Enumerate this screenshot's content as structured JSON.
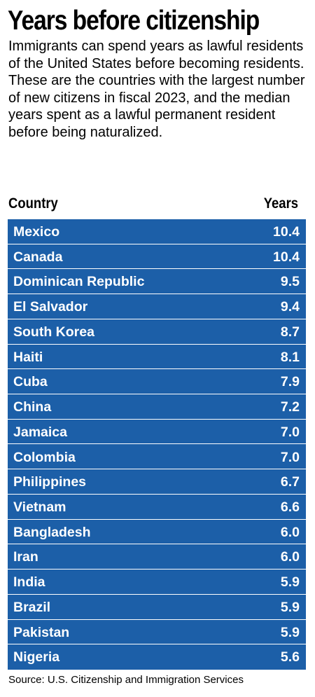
{
  "title": "Years before citizenship",
  "description": "Immigrants can spend years as lawful residents of the United States before be­coming residents. These are the countries with the largest number of new citizens in fiscal 2023, and the median years spent as a lawful permanent resident before being naturalized.",
  "source": "Source: U.S. Citizenship and Immigration Services",
  "colors": {
    "row_background": "#1c5fa8",
    "row_text": "#ffffff",
    "text": "#000000"
  },
  "chart_data": {
    "type": "table",
    "columns": [
      "Country",
      "Years"
    ],
    "rows": [
      {
        "country": "Mexico",
        "years": "10.4"
      },
      {
        "country": "Canada",
        "years": "10.4"
      },
      {
        "country": "Dominican Republic",
        "years": "9.5"
      },
      {
        "country": "El Salvador",
        "years": "9.4"
      },
      {
        "country": "South Korea",
        "years": "8.7"
      },
      {
        "country": "Haiti",
        "years": "8.1"
      },
      {
        "country": "Cuba",
        "years": "7.9"
      },
      {
        "country": "China",
        "years": "7.2"
      },
      {
        "country": "Jamaica",
        "years": "7.0"
      },
      {
        "country": "Colombia",
        "years": "7.0"
      },
      {
        "country": "Philippines",
        "years": "6.7"
      },
      {
        "country": "Vietnam",
        "years": "6.6"
      },
      {
        "country": "Bangladesh",
        "years": "6.0"
      },
      {
        "country": "Iran",
        "years": "6.0"
      },
      {
        "country": "India",
        "years": "5.9"
      },
      {
        "country": "Brazil",
        "years": "5.9"
      },
      {
        "country": "Pakistan",
        "years": "5.9"
      },
      {
        "country": "Nigeria",
        "years": "5.6"
      }
    ]
  }
}
